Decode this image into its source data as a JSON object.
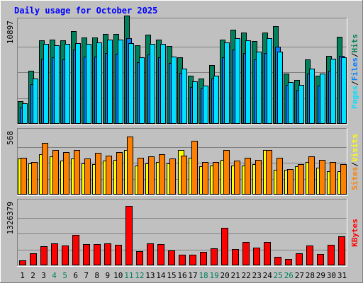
{
  "colors": {
    "background": "#c0c0c0",
    "title": "#0000ff",
    "hits": "#00805c",
    "files": "#0080ff",
    "pages": "#00e0ff",
    "visits": "#ffff00",
    "sites": "#ff8000",
    "kbytes": "#ff0000",
    "weekend_day": "#00805c",
    "weekday": "#000000"
  },
  "chart_data": {
    "type": "bar",
    "title": "Daily usage for October 2025",
    "categories": [
      "1",
      "2",
      "3",
      "4",
      "5",
      "6",
      "7",
      "8",
      "9",
      "10",
      "11",
      "12",
      "13",
      "14",
      "15",
      "16",
      "17",
      "18",
      "19",
      "20",
      "21",
      "22",
      "23",
      "24",
      "25",
      "26",
      "27",
      "28",
      "29",
      "30",
      "31"
    ],
    "weekend_days": [
      "4",
      "5",
      "11",
      "12",
      "18",
      "19",
      "25",
      "26"
    ],
    "panels": [
      {
        "id": "hits_files_pages",
        "axis_max_label": "10897",
        "ymax": 10897,
        "legend": [
          "Pages",
          "/",
          "Files",
          "/",
          "Hits"
        ],
        "series": [
          {
            "name": "Hits",
            "color_key": "hits",
            "values": [
              2400,
              5600,
              8800,
              8900,
              8800,
              9800,
              9100,
              9100,
              9500,
              9500,
              11400,
              8300,
              9400,
              8900,
              8200,
              7000,
              5100,
              4800,
              6200,
              8900,
              9900,
              9600,
              8700,
              9600,
              10300,
              5300,
              4600,
              6800,
              5100,
              7200,
              9200
            ]
          },
          {
            "name": "Files",
            "color_key": "files",
            "values": [
              1700,
              4200,
              6900,
              7000,
              6800,
              7800,
              7100,
              7100,
              7500,
              7400,
              9000,
              6500,
              7300,
              7000,
              6400,
              5400,
              3900,
              3700,
              4800,
              7000,
              7800,
              7500,
              6800,
              7500,
              8100,
              4100,
              3600,
              5300,
              4000,
              5600,
              7200
            ]
          },
          {
            "name": "Pages",
            "color_key": "pages",
            "values": [
              2200,
              4800,
              8400,
              8300,
              8400,
              8500,
              8400,
              8600,
              8900,
              8900,
              8500,
              7000,
              8400,
              8400,
              7100,
              5800,
              4500,
              4000,
              5100,
              8600,
              9000,
              8800,
              7600,
              9000,
              7600,
              4400,
              4100,
              5800,
              5300,
              6900,
              7000
            ]
          }
        ]
      },
      {
        "id": "visits_sites",
        "axis_max_label": "568",
        "ymax": 568,
        "legend": [
          "Sites",
          "/",
          "Visits"
        ],
        "series": [
          {
            "name": "Visits",
            "color_key": "visits",
            "values": [
              320,
              280,
              360,
              340,
              300,
              320,
              280,
              270,
              300,
              310,
              400,
              260,
              280,
              290,
              280,
              400,
              330,
              250,
              260,
              310,
              260,
              260,
              270,
              400,
              220,
              220,
              250,
              290,
              240,
              210,
              210
            ]
          },
          {
            "name": "Sites",
            "color_key": "sites",
            "values": [
              330,
              290,
              460,
              400,
              380,
              400,
              320,
              370,
              350,
              380,
              520,
              330,
              340,
              360,
              320,
              350,
              480,
              290,
              290,
              400,
              300,
              330,
              310,
              400,
              330,
              230,
              270,
              340,
              310,
              290,
              270
            ]
          }
        ]
      },
      {
        "id": "kbytes",
        "axis_max_label": "1326379",
        "ymax": 1400000,
        "legend": [
          "KBytes"
        ],
        "series": [
          {
            "name": "KBytes",
            "color_key": "kbytes",
            "values": [
              110000,
              260000,
              420000,
              490000,
              430000,
              670000,
              460000,
              460000,
              490000,
              450000,
              1300000,
              310000,
              480000,
              460000,
              330000,
              230000,
              240000,
              300000,
              380000,
              830000,
              360000,
              510000,
              390000,
              510000,
              190000,
              140000,
              270000,
              440000,
              250000,
              450000,
              640000
            ]
          }
        ]
      }
    ]
  }
}
